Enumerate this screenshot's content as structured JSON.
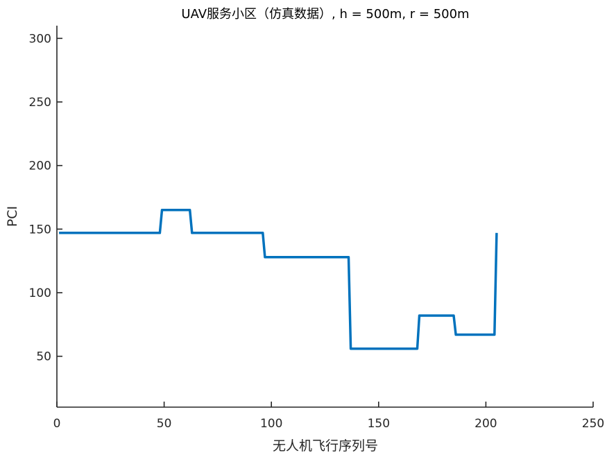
{
  "chart_data": {
    "type": "line",
    "title": "UAV服务小区（仿真数据）, h = 500m, r = 500m",
    "xlabel": "无人机飞行序列号",
    "ylabel": "PCI",
    "xlim": [
      0,
      250
    ],
    "ylim": [
      10,
      310
    ],
    "xticks": [
      0,
      50,
      100,
      150,
      200,
      250
    ],
    "yticks": [
      50,
      100,
      150,
      200,
      250,
      300
    ],
    "xtick_labels": [
      "0",
      "50",
      "100",
      "150",
      "200",
      "250"
    ],
    "ytick_labels": [
      "50",
      "100",
      "150",
      "200",
      "250",
      "300"
    ],
    "grid": false,
    "line_color": "#0072BD",
    "series": [
      {
        "x": [
          1,
          48,
          49,
          62,
          63,
          96,
          97,
          136,
          137,
          168,
          169,
          185,
          186,
          204,
          205
        ],
        "y": [
          147,
          147,
          165,
          165,
          147,
          147,
          128,
          128,
          56,
          56,
          82,
          82,
          67,
          67,
          147
        ]
      }
    ]
  }
}
